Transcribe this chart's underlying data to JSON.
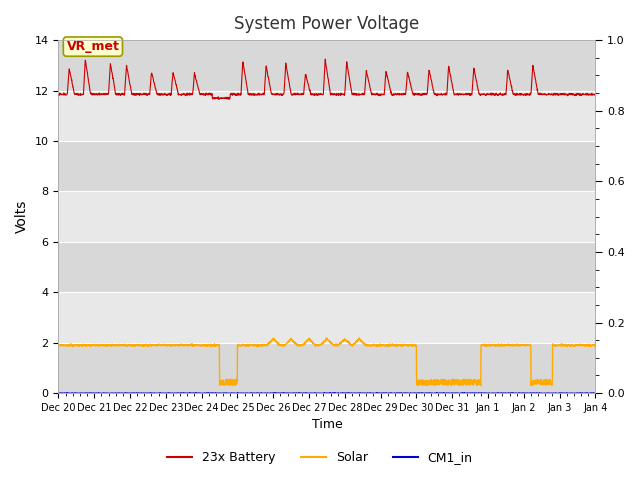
{
  "title": "System Power Voltage",
  "xlabel": "Time",
  "ylabel": "Volts",
  "background_color": "#ffffff",
  "plot_bg_color": "#e8e8e8",
  "xlim_days": [
    0,
    15.0
  ],
  "ylim_left": [
    0,
    14
  ],
  "ylim_right": [
    0.0,
    1.0
  ],
  "yticks_left": [
    0,
    2,
    4,
    6,
    8,
    10,
    12,
    14
  ],
  "yticks_right": [
    0.0,
    0.2,
    0.4,
    0.6,
    0.8,
    1.0
  ],
  "xtick_labels": [
    "Dec 20",
    "Dec 21",
    "Dec 22",
    "Dec 23",
    "Dec 24",
    "Dec 25",
    "Dec 26",
    "Dec 27",
    "Dec 28",
    "Dec 29",
    "Dec 30",
    "Dec 31",
    "Jan 1",
    "Jan 2",
    "Jan 3",
    "Jan 4"
  ],
  "annotation_text": "VR_met",
  "annotation_color": "#cc0000",
  "annotation_bg": "#ffffcc",
  "annotation_edge": "#999900",
  "legend_labels": [
    "23x Battery",
    "Solar",
    "CM1_in"
  ],
  "legend_colors": [
    "#cc0000",
    "#ffaa00",
    "#0000cc"
  ],
  "battery_base": 11.85,
  "solar_base": 1.9,
  "battery_color": "#cc0000",
  "solar_color": "#ffaa00",
  "cm1_color": "#0000cc",
  "grid_color": "#ffffff",
  "band_color_light": "#e0e0e0",
  "band_color_dark": "#d0d0d0"
}
